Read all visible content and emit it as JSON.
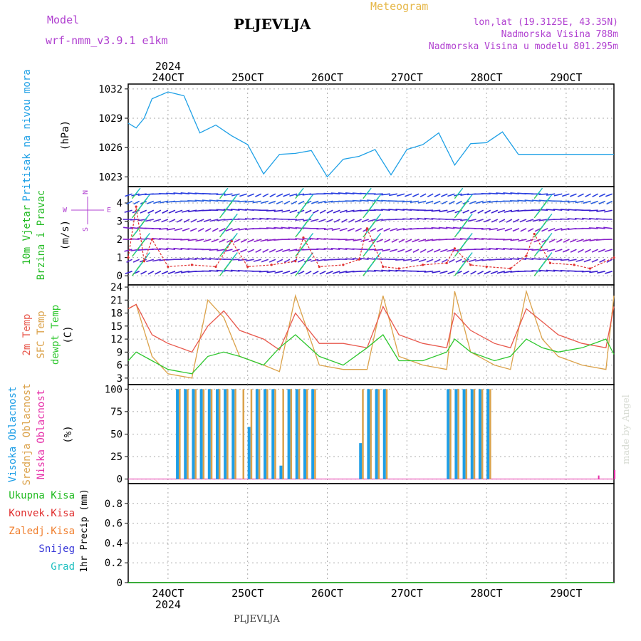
{
  "header": {
    "model_label": "Model",
    "model_name": "wrf-nmm_v3.9.1 e1km",
    "station": "PLJEVLJA",
    "product": "Meteogram",
    "location": "lon,lat (19.3125E, 43.35N)",
    "altitude": "Nadmorska Visina 788m",
    "model_altitude": "Nadmorska Visina u modelu 801.295m"
  },
  "footer": {
    "station": "PLJEVLJA",
    "credit": "made by Angel"
  },
  "colors": {
    "pressure": "#1ea0e6",
    "temp2m": "#e8584c",
    "sfc": "#dba24a",
    "dew": "#2ec72e",
    "cloud_high": "#1e9ee6",
    "cloud_mid": "#dba24a",
    "cloud_low": "#e62ea8",
    "wind_label": "#22bb22",
    "compass": "#b040d0",
    "model": "#b040d0",
    "product": "#e6b84a"
  },
  "chart_data": [
    {
      "type": "line",
      "title": "",
      "ylabel": [
        "Pritisak na nivou mora",
        "(hPa)"
      ],
      "x_ticks": [
        "24OCT",
        "25OCT",
        "26OCT",
        "27OCT",
        "28OCT",
        "29OCT"
      ],
      "x_year": "2024",
      "ylim": [
        1022,
        1032.5
      ],
      "yticks": [
        1023,
        1026,
        1029,
        1032
      ],
      "grid": true,
      "series": [
        {
          "name": "Pritisak na nivou mora",
          "x": [
            23.5,
            23.6,
            23.7,
            23.8,
            24.0,
            24.2,
            24.4,
            24.6,
            24.8,
            25.0,
            25.2,
            25.4,
            25.6,
            25.8,
            26.0,
            26.2,
            26.4,
            26.6,
            26.8,
            27.0,
            27.2,
            27.4,
            27.6,
            27.8,
            28.0,
            28.2,
            28.4,
            28.6,
            28.8,
            29.0,
            29.2,
            29.4,
            29.6
          ],
          "values": [
            1028.5,
            1028,
            1029,
            1031,
            1031.7,
            1031.3,
            1027.5,
            1028.3,
            1027.2,
            1026.3,
            1023.3,
            1025.3,
            1025.4,
            1025.7,
            1023.0,
            1024.8,
            1025.1,
            1025.8,
            1023.2,
            1025.8,
            1026.3,
            1027.5,
            1024.2,
            1026.4,
            1026.5,
            1027.6,
            1025.3,
            1025.3,
            1025.3,
            1025.3,
            1025.3,
            1025.3,
            1025.3
          ]
        }
      ]
    },
    {
      "type": "scatter",
      "title": "",
      "ylabel": [
        "10m Vjetar",
        "Brzina i Pravac",
        "(m/s)"
      ],
      "compass": {
        "n": "N",
        "s": "S",
        "e": "E",
        "w": "W"
      },
      "ylim": [
        -0.5,
        4.9
      ],
      "yticks": [
        0,
        1,
        2,
        3,
        4
      ],
      "grid": true,
      "series": [
        {
          "name": "Brzina",
          "x": [
            23.5,
            23.6,
            23.7,
            23.8,
            24.0,
            24.3,
            24.6,
            24.8,
            25.0,
            25.3,
            25.6,
            25.7,
            25.9,
            26.2,
            26.4,
            26.5,
            26.7,
            26.9,
            27.2,
            27.5,
            27.6,
            27.8,
            28.0,
            28.3,
            28.5,
            28.6,
            28.8,
            29.1,
            29.3,
            29.6
          ],
          "values": [
            1.0,
            3.8,
            0.8,
            2.0,
            0.5,
            0.6,
            0.5,
            1.9,
            0.5,
            0.6,
            0.8,
            2.1,
            0.5,
            0.6,
            0.9,
            2.6,
            0.5,
            0.4,
            0.6,
            0.7,
            1.5,
            0.6,
            0.5,
            0.4,
            1.1,
            2.3,
            0.7,
            0.6,
            0.4,
            1.0
          ]
        }
      ]
    },
    {
      "type": "line",
      "title": "",
      "ylabel": [
        "2m Temp",
        "SFC Temp",
        "dewpt Temp",
        "(C)"
      ],
      "ylim": [
        1.5,
        24.5
      ],
      "yticks": [
        3,
        6,
        9,
        12,
        15,
        18,
        21,
        24
      ],
      "grid": true,
      "series": [
        {
          "name": "2m Temp",
          "x": [
            23.5,
            23.6,
            23.8,
            24.0,
            24.3,
            24.5,
            24.7,
            24.9,
            25.2,
            25.4,
            25.6,
            25.9,
            26.2,
            26.5,
            26.7,
            26.9,
            27.2,
            27.5,
            27.6,
            27.8,
            28.1,
            28.3,
            28.5,
            28.7,
            28.9,
            29.2,
            29.5,
            29.6
          ],
          "values": [
            19,
            20,
            13,
            11,
            9,
            15,
            18.5,
            14,
            12,
            9.5,
            18,
            11,
            11,
            10,
            19.5,
            13,
            11,
            10,
            18,
            14,
            11,
            10,
            19,
            16,
            13,
            11,
            10,
            19.5
          ]
        },
        {
          "name": "SFC Temp",
          "x": [
            23.5,
            23.6,
            23.8,
            24.0,
            24.3,
            24.5,
            24.7,
            24.9,
            25.2,
            25.4,
            25.6,
            25.9,
            26.2,
            26.5,
            26.7,
            26.9,
            27.2,
            27.5,
            27.6,
            27.8,
            28.1,
            28.3,
            28.5,
            28.7,
            28.9,
            29.2,
            29.5,
            29.6
          ],
          "values": [
            19,
            20,
            8,
            4,
            3,
            21,
            17,
            8,
            6,
            4.5,
            22,
            6,
            5,
            5,
            22,
            8,
            6,
            5,
            23,
            9,
            6,
            5,
            23,
            12,
            8,
            6,
            5,
            22
          ]
        },
        {
          "name": "dewpt Temp",
          "x": [
            23.5,
            23.6,
            23.8,
            24.0,
            24.3,
            24.5,
            24.7,
            24.9,
            25.2,
            25.4,
            25.6,
            25.9,
            26.2,
            26.5,
            26.7,
            26.9,
            27.2,
            27.5,
            27.6,
            27.8,
            28.1,
            28.3,
            28.5,
            28.7,
            28.9,
            29.2,
            29.5,
            29.6
          ],
          "values": [
            7,
            9,
            7,
            5,
            4,
            8,
            9,
            8,
            6,
            10,
            13,
            8,
            6,
            10,
            13,
            7,
            7,
            9,
            12,
            9,
            7,
            8,
            12,
            10,
            9,
            10,
            12,
            8.5
          ]
        }
      ]
    },
    {
      "type": "bar",
      "title": "",
      "ylabel": [
        "Visoka Oblacnost",
        "Srednja Oblacnost",
        "Niska Oblacnost",
        "(%)"
      ],
      "ylim": [
        -5,
        105
      ],
      "yticks": [
        0,
        25,
        50,
        75,
        100
      ],
      "grid": true,
      "series": [
        {
          "name": "Visoka Oblacnost",
          "x": [
            24.1,
            24.2,
            24.3,
            24.4,
            24.5,
            24.6,
            24.7,
            24.8,
            24.9,
            25.0,
            25.1,
            25.2,
            25.3,
            25.4,
            25.5,
            25.6,
            25.7,
            25.8,
            26.4,
            26.5,
            26.6,
            26.7,
            27.5,
            27.6,
            27.7,
            27.8,
            27.9,
            28.0
          ],
          "values": [
            100,
            100,
            100,
            100,
            100,
            100,
            100,
            100,
            0,
            58,
            100,
            100,
            100,
            15,
            100,
            100,
            100,
            100,
            40,
            100,
            100,
            100,
            100,
            100,
            100,
            100,
            100,
            100
          ]
        },
        {
          "name": "Srednja Oblacnost",
          "x": [
            24.1,
            24.2,
            24.3,
            24.4,
            24.5,
            24.6,
            24.7,
            24.8,
            24.9,
            25.0,
            25.1,
            25.2,
            25.3,
            25.4,
            25.5,
            25.6,
            25.7,
            25.8,
            26.4,
            26.5,
            26.6,
            26.7,
            27.5,
            27.6,
            27.7,
            27.8,
            27.9,
            28.0
          ],
          "values": [
            100,
            100,
            100,
            100,
            100,
            100,
            100,
            100,
            100,
            100,
            100,
            100,
            100,
            100,
            100,
            100,
            100,
            100,
            100,
            100,
            100,
            100,
            100,
            100,
            100,
            100,
            100,
            100
          ]
        },
        {
          "name": "Niska Oblacnost",
          "x": [
            29.4,
            29.6
          ],
          "values": [
            4,
            10
          ]
        }
      ]
    },
    {
      "type": "bar",
      "title": "",
      "ylabel": [
        "Ukupna Kisa",
        "Konvek.Kisa",
        "Zaledj.Kisa",
        "Snijeg",
        "Grad",
        "1hr Precip (mm)"
      ],
      "ylim": [
        0,
        1.0
      ],
      "yticks": [
        0,
        0.2,
        0.4,
        0.6,
        0.8
      ],
      "ytick_labels": [
        "0",
        "0.2",
        "0.4",
        "0.6",
        "0.8"
      ],
      "grid": true,
      "x_ticks": [
        "24OCT",
        "25OCT",
        "26OCT",
        "27OCT",
        "28OCT",
        "29OCT"
      ],
      "x_year": "2024",
      "series": []
    }
  ]
}
